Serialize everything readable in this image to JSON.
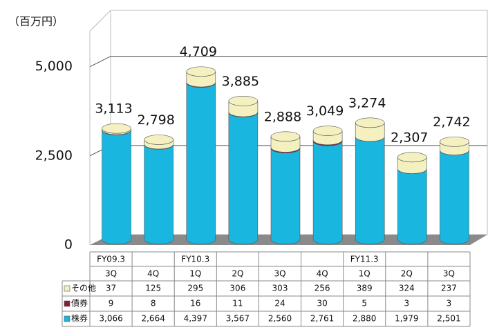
{
  "chart_data": {
    "type": "stacked_cylinder",
    "y_label": "（百万円）",
    "fiscal_years": [
      "FY09.3",
      null,
      "FY10.3",
      null,
      null,
      null,
      "FY11.3",
      null,
      null
    ],
    "categories": [
      "3Q",
      "4Q",
      "1Q",
      "2Q",
      "3Q",
      "4Q",
      "1Q",
      "2Q",
      "3Q"
    ],
    "series": [
      {
        "name": "その他",
        "color": "#f4f0c0",
        "values": [
          37,
          125,
          295,
          306,
          303,
          256,
          389,
          324,
          237
        ]
      },
      {
        "name": "債券",
        "color": "#8b1a3c",
        "values": [
          9,
          8,
          16,
          11,
          24,
          30,
          5,
          3,
          3
        ]
      },
      {
        "name": "株券",
        "color": "#19b6df",
        "values": [
          3066,
          2664,
          4397,
          3567,
          2560,
          2761,
          2880,
          1979,
          2501
        ],
        "value_labels": [
          "3,066",
          "2,664",
          "4,397",
          "3,567",
          "2,560",
          "2,761",
          "2,880",
          "1,979",
          "2,501"
        ]
      }
    ],
    "totals": [
      3113,
      2798,
      4709,
      3885,
      2888,
      3049,
      3274,
      2307,
      2742
    ],
    "total_labels": [
      "3,113",
      "2,798",
      "4,709",
      "3,885",
      "2,888",
      "3,049",
      "3,274",
      "2,307",
      "2,742"
    ],
    "ylim": [
      0,
      6000
    ],
    "yticks": [
      {
        "value": 0,
        "label": "0"
      },
      {
        "value": 2500,
        "label": "2,500"
      },
      {
        "value": 5000,
        "label": "5,000"
      }
    ],
    "grid": true
  }
}
